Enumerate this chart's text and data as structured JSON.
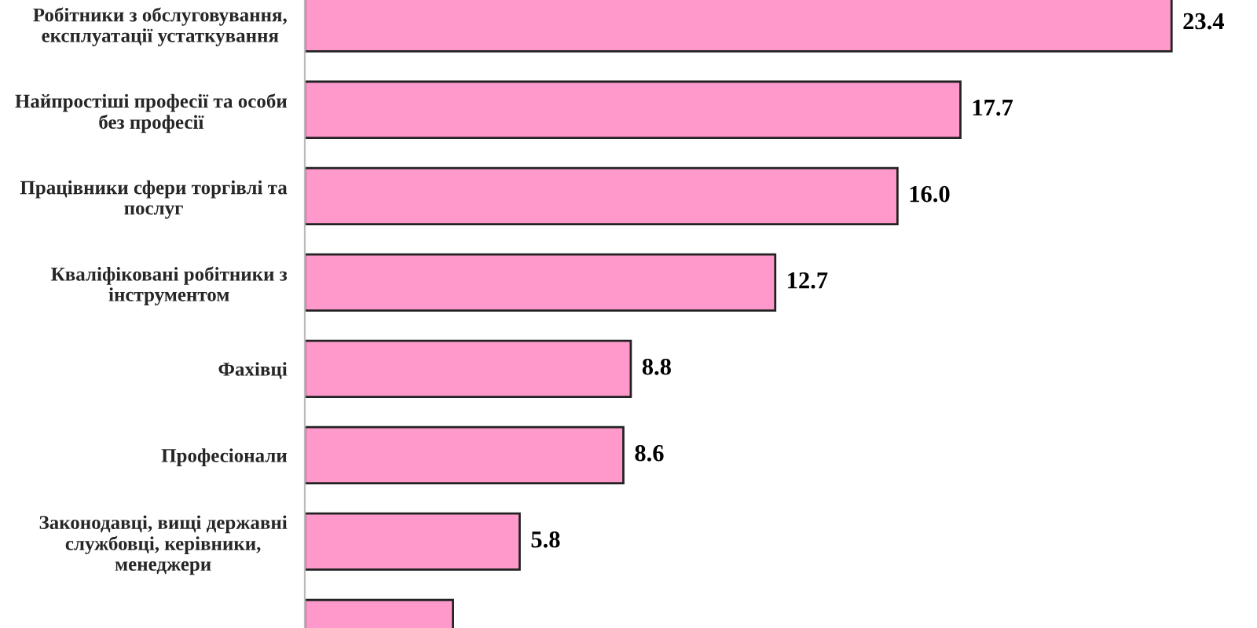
{
  "chart_data": {
    "type": "bar",
    "orientation": "horizontal",
    "categories": [
      "Робітники з обслуговування,\nексплуатації устаткування",
      "Найпростіші професії та особи\nбез професії",
      "Працівники сфери торгівлі та\nпослуг",
      "Кваліфіковані робітники з\nінструментом",
      "Фахівці",
      "Професіонали",
      "Законодавці, вищі державні\nслужбовці, керівники,\nменеджери",
      null
    ],
    "values": [
      23.4,
      17.7,
      16.0,
      12.7,
      8.8,
      8.6,
      5.8,
      4.0
    ],
    "value_labels": [
      "23.4",
      "17.7",
      "16.0",
      "12.7",
      "8.8",
      "8.6",
      "5.8",
      null
    ],
    "color": "#ff99cc",
    "grid": false,
    "legend": false,
    "tick_labels": "y"
  }
}
